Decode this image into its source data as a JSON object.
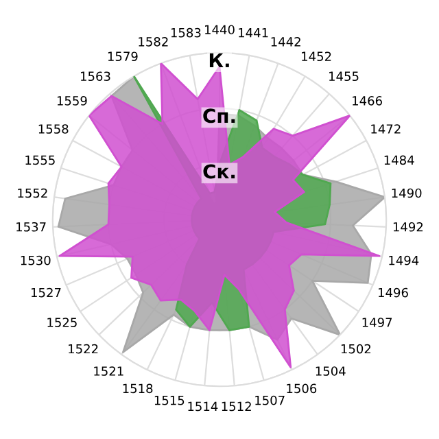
{
  "chart_data": {
    "type": "radar",
    "categories": [
      "1440",
      "1441",
      "1442",
      "1452",
      "1455",
      "1466",
      "1472",
      "1484",
      "1490",
      "1492",
      "1494",
      "1496",
      "1497",
      "1502",
      "1504",
      "1506",
      "1507",
      "1512",
      "1514",
      "1515",
      "1518",
      "1521",
      "1522",
      "1525",
      "1527",
      "1530",
      "1537",
      "1552",
      "1555",
      "1558",
      "1559",
      "1563",
      "1579",
      "1582",
      "1583"
    ],
    "series": [
      {
        "color": "#a8a8a8",
        "values": [
          1.9,
          1.9,
          1.8,
          1.7,
          1.7,
          1.7,
          1.7,
          2.2,
          3.0,
          2.4,
          2.8,
          2.9,
          2.0,
          3.0,
          2.2,
          2.4,
          2.0,
          2.0,
          2.0,
          2.0,
          1.9,
          2.95,
          1.9,
          1.8,
          1.8,
          2.0,
          2.9,
          2.8,
          2.0,
          2.0,
          2.0,
          2.95,
          3.0,
          0.3,
          0.3
        ]
      },
      {
        "color": "#50a850",
        "values": [
          1.0,
          2.0,
          1.9,
          1.5,
          1.5,
          1.6,
          1.7,
          2.1,
          2.0,
          1.9,
          1.0,
          1.0,
          1.0,
          1.0,
          1.0,
          1.0,
          2.0,
          2.0,
          1.5,
          2.0,
          1.8,
          1.0,
          0.5,
          0.5,
          0.5,
          0.5,
          0.5,
          0.5,
          0.5,
          0.5,
          0.5,
          0.5,
          3.0,
          0.5,
          0.5
        ]
      },
      {
        "color": "#d050d0",
        "values": [
          2.75,
          1.0,
          1.2,
          1.9,
          2.0,
          3.0,
          1.5,
          1.6,
          1.0,
          1.2,
          2.95,
          1.6,
          1.5,
          1.85,
          2.0,
          2.95,
          1.3,
          1.0,
          2.0,
          1.7,
          1.6,
          1.8,
          1.7,
          1.9,
          1.7,
          2.95,
          2.0,
          2.0,
          2.1,
          2.0,
          3.0,
          2.95,
          2.0,
          3.0,
          2.2
        ]
      }
    ],
    "ylim": [
      0,
      3
    ],
    "yticks": [
      {
        "value": 1,
        "label": "Ск."
      },
      {
        "value": 2,
        "label": "Сп."
      },
      {
        "value": 3,
        "label": "К."
      }
    ],
    "grid": true
  }
}
